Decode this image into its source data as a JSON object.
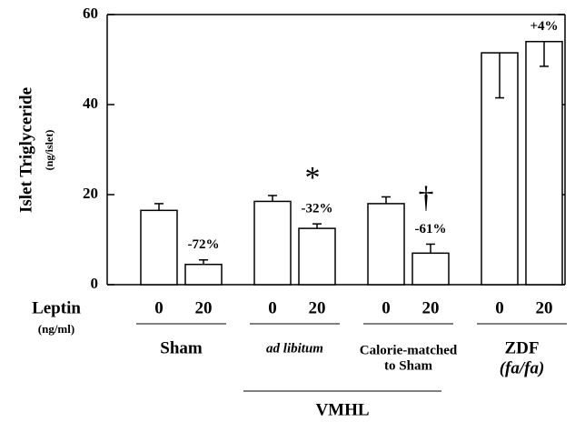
{
  "chart_data": {
    "type": "bar",
    "y_label": "Islet Triglyceride",
    "y_unit": "(ng/islet)",
    "x_label": "Leptin",
    "x_unit": "(ng/ml)",
    "categories": [
      "0",
      "20",
      "0",
      "20",
      "0",
      "20",
      "0",
      "20"
    ],
    "values": [
      16.5,
      4.5,
      18.5,
      12.5,
      18,
      7,
      51.5,
      54
    ],
    "errors": [
      1.5,
      1,
      1.3,
      1,
      1.5,
      2,
      10,
      5.5
    ],
    "error_side": [
      "up",
      "up",
      "up",
      "up",
      "up",
      "up",
      "down",
      "down"
    ],
    "color": "#ffffff",
    "ylim": [
      0,
      60
    ],
    "yticks": [
      0,
      20,
      40,
      60
    ],
    "annotations": [
      {
        "index": 1,
        "label": "-72%"
      },
      {
        "index": 3,
        "label": "-32%",
        "symbol": "*"
      },
      {
        "index": 5,
        "label": "-61%",
        "symbol": "†"
      },
      {
        "index": 7,
        "label": "+4%"
      }
    ],
    "groups": [
      {
        "span": [
          0,
          1
        ],
        "lines": [
          "Sham"
        ]
      },
      {
        "span": [
          2,
          3
        ],
        "lines": [
          "ad libitum"
        ],
        "italic": true
      },
      {
        "span": [
          4,
          5
        ],
        "lines": [
          "Calorie-matched",
          "to Sham"
        ]
      },
      {
        "span": [
          6,
          7
        ],
        "lines": [
          "ZDF",
          "(fa/fa)"
        ]
      }
    ],
    "super_group": {
      "span": [
        2,
        5
      ],
      "label": "VMHL"
    }
  }
}
